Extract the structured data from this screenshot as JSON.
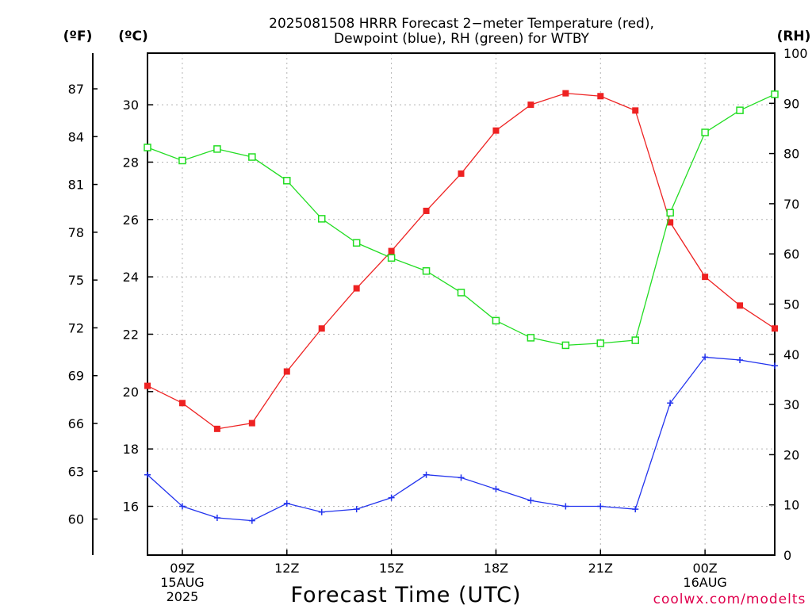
{
  "chart_data": {
    "type": "line",
    "title_lines": [
      "2025081508 HRRR Forecast 2−meter Temperature (red),",
      "Dewpoint (blue), RH (green) for WTBY"
    ],
    "xlabel": "Forecast Time (UTC)",
    "left_unit_f": "(ºF)",
    "left_unit_c": "(ºC)",
    "right_unit": "(RH)",
    "credit": "coolwx.com/modelts",
    "hours": [
      8,
      9,
      10,
      11,
      12,
      13,
      14,
      15,
      16,
      17,
      18,
      19,
      20,
      21,
      22,
      23,
      24,
      25,
      26
    ],
    "x_ticks": [
      {
        "hour": 9,
        "lines": [
          "09Z",
          "15AUG",
          "2025"
        ]
      },
      {
        "hour": 12,
        "lines": [
          "12Z"
        ]
      },
      {
        "hour": 15,
        "lines": [
          "15Z"
        ]
      },
      {
        "hour": 18,
        "lines": [
          "18Z"
        ]
      },
      {
        "hour": 21,
        "lines": [
          "21Z"
        ]
      },
      {
        "hour": 24,
        "lines": [
          "00Z",
          "16AUG"
        ]
      }
    ],
    "celsius_ticks": [
      16,
      18,
      20,
      22,
      24,
      26,
      28,
      30
    ],
    "fahrenheit_ticks": [
      60,
      63,
      66,
      69,
      72,
      75,
      78,
      81,
      84,
      87
    ],
    "rh_ticks": [
      0,
      10,
      20,
      30,
      40,
      50,
      60,
      70,
      80,
      90,
      100
    ],
    "c_range": [
      14.3,
      31.8
    ],
    "rh_range": [
      0,
      100
    ],
    "series": [
      {
        "name": "Temperature",
        "color": "#ee2222",
        "axis": "C",
        "marker": "filled-square",
        "values": [
          20.2,
          19.6,
          18.7,
          18.9,
          20.7,
          22.2,
          23.6,
          24.9,
          26.3,
          27.6,
          29.1,
          30.0,
          30.4,
          30.3,
          29.8,
          25.9,
          24.0,
          23.0,
          22.2
        ]
      },
      {
        "name": "Dewpoint",
        "color": "#2233ee",
        "axis": "C",
        "marker": "plus",
        "values": [
          17.1,
          16.0,
          15.6,
          15.5,
          16.1,
          15.8,
          15.9,
          16.3,
          17.1,
          17.0,
          16.6,
          16.2,
          16.0,
          16.0,
          15.9,
          19.6,
          21.2,
          21.1,
          20.9
        ]
      },
      {
        "name": "RH",
        "color": "#22dd22",
        "axis": "RH",
        "marker": "open-square",
        "values": [
          81.2,
          78.6,
          80.9,
          79.3,
          74.6,
          67.0,
          62.2,
          59.2,
          56.6,
          52.3,
          46.7,
          43.3,
          41.8,
          42.2,
          42.8,
          68.2,
          84.2,
          88.6,
          91.8
        ]
      }
    ]
  }
}
